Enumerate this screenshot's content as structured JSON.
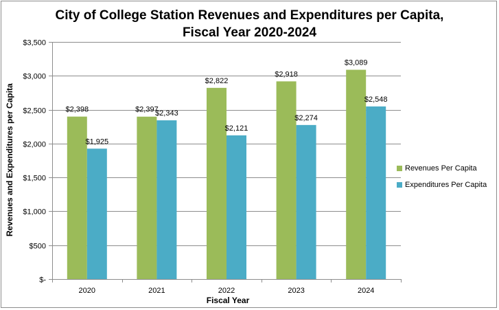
{
  "chart_data": {
    "type": "bar",
    "title_line1": "City of College Station Revenues and Expenditures per Capita,",
    "title_line2": "Fiscal Year 2020-2024",
    "xlabel": "Fiscal Year",
    "ylabel": "Revenues and Expenditures per Capita",
    "categories": [
      "2020",
      "2021",
      "2022",
      "2023",
      "2024"
    ],
    "ylim": [
      0,
      3500
    ],
    "yticks": [
      0,
      500,
      1000,
      1500,
      2000,
      2500,
      3000,
      3500
    ],
    "ytick_labels": [
      "$-",
      "$500",
      "$1,000",
      "$1,500",
      "$2,000",
      "$2,500",
      "$3,000",
      "$3,500"
    ],
    "grid": true,
    "legend_position": "right",
    "series": [
      {
        "name": "Revenues Per Capita",
        "color": "#9bbb59",
        "values": [
          2398,
          2397,
          2822,
          2918,
          3089
        ],
        "labels": [
          "$2,398",
          "$2,397",
          "$2,822",
          "$2,918",
          "$3,089"
        ]
      },
      {
        "name": "Expenditures Per Capita",
        "color": "#4bacc6",
        "values": [
          1925,
          2343,
          2121,
          2274,
          2548
        ],
        "labels": [
          "$1,925",
          "$2,343",
          "$2,121",
          "$2,274",
          "$2,548"
        ]
      }
    ]
  }
}
